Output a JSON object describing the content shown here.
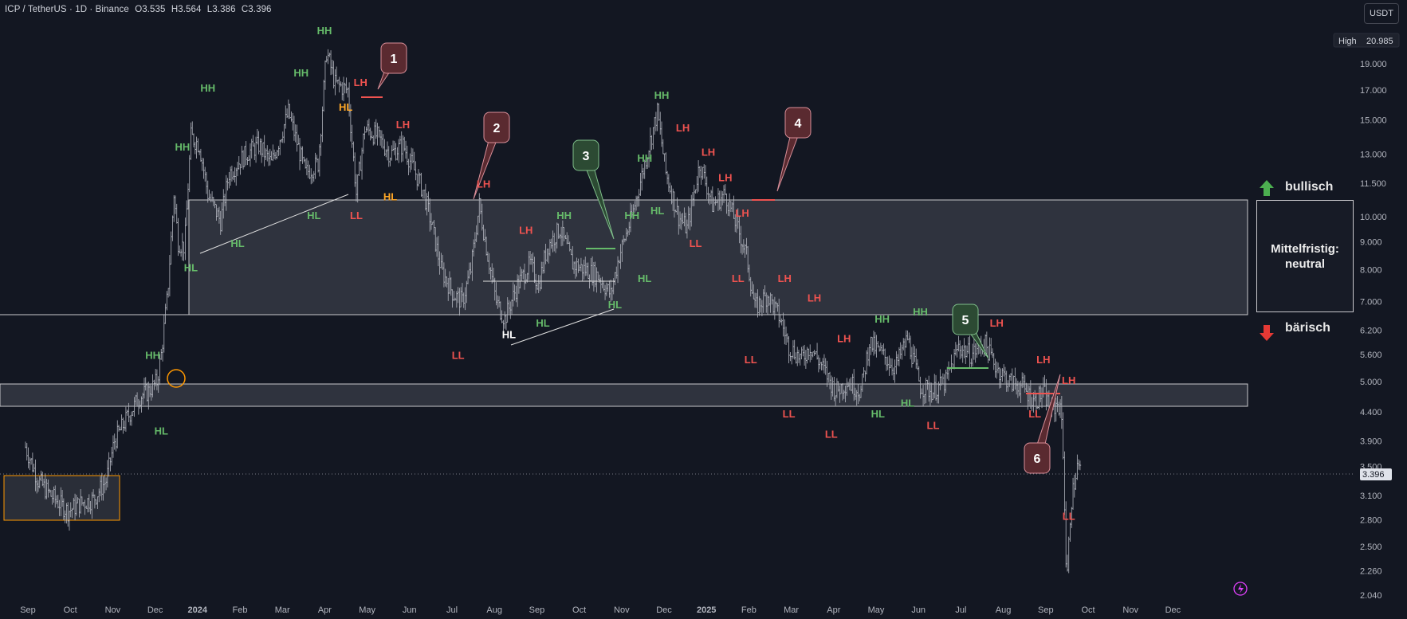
{
  "header": {
    "symbol": "ICP / TetherUS · 1D · Binance",
    "open": "O3.535",
    "high": "H3.564",
    "low": "L3.386",
    "close": "C3.396"
  },
  "currency_button": "USDT",
  "high_badge": {
    "label": "High",
    "value": "20.985"
  },
  "price_badge": "3.396",
  "zones": {
    "bullish_label": "bullisch",
    "bearish_label": "bärisch",
    "neutral_label_line1": "Mittelfristig:",
    "neutral_label_line2": "neutral"
  },
  "colors": {
    "background": "#131722",
    "candle": "#b2b5be",
    "green_label": "#66bb6a",
    "red_label": "#ef5350",
    "orange_label": "#ffa726",
    "white_label": "#ffffff",
    "callout_red": "#5a2a30",
    "callout_green": "#2c4a33",
    "zone_fill": "#3a3e48"
  },
  "chart_data": {
    "type": "candlestick",
    "yscale": "log",
    "ylim": [
      2.0,
      21.0
    ],
    "y_ticks": [
      "19.000",
      "17.000",
      "15.000",
      "13.000",
      "11.500",
      "10.000",
      "9.000",
      "8.000",
      "7.000",
      "6.200",
      "5.600",
      "5.000",
      "4.400",
      "3.900",
      "3.500",
      "3.100",
      "2.800",
      "2.500",
      "2.260",
      "2.040"
    ],
    "y_tick_values": [
      19.0,
      17.0,
      15.0,
      13.0,
      11.5,
      10.0,
      9.0,
      8.0,
      7.0,
      6.2,
      5.6,
      5.0,
      4.4,
      3.9,
      3.5,
      3.1,
      2.8,
      2.5,
      2.26,
      2.04
    ],
    "x_ticks": [
      "Sep",
      "Oct",
      "Nov",
      "Dec",
      "2024",
      "Feb",
      "Mar",
      "Apr",
      "May",
      "Jun",
      "Jul",
      "Aug",
      "Sep",
      "Oct",
      "Nov",
      "Dec",
      "2025",
      "Feb",
      "Mar",
      "Apr",
      "May",
      "Jun",
      "Jul",
      "Aug",
      "Sep",
      "Oct",
      "Nov",
      "Dec"
    ],
    "x_tick_index": [
      0,
      1,
      2,
      3,
      4,
      5,
      6,
      7,
      8,
      9,
      10,
      11,
      12,
      13,
      14,
      15,
      16,
      17,
      18,
      19,
      20,
      21,
      22,
      23,
      24,
      25,
      26,
      27
    ],
    "x_tick_start": "2023-09",
    "price_path": [
      [
        0,
        3.8
      ],
      [
        0.3,
        3.3
      ],
      [
        0.6,
        3.1
      ],
      [
        1.0,
        2.9
      ],
      [
        1.3,
        3.0
      ],
      [
        1.6,
        3.05
      ],
      [
        1.9,
        3.3
      ],
      [
        2.1,
        3.9
      ],
      [
        2.4,
        4.3
      ],
      [
        2.7,
        4.7
      ],
      [
        2.9,
        4.8
      ],
      [
        3.1,
        5.0
      ],
      [
        3.2,
        5.6
      ],
      [
        3.35,
        7.2
      ],
      [
        3.5,
        11.0
      ],
      [
        3.6,
        9.0
      ],
      [
        3.75,
        8.8
      ],
      [
        3.9,
        14.0
      ],
      [
        4.1,
        13.5
      ],
      [
        4.3,
        11.0
      ],
      [
        4.6,
        9.8
      ],
      [
        4.8,
        12.0
      ],
      [
        5.2,
        13.0
      ],
      [
        5.5,
        13.5
      ],
      [
        5.8,
        12.5
      ],
      [
        6.2,
        15.5
      ],
      [
        6.6,
        12.0
      ],
      [
        6.9,
        12.5
      ],
      [
        7.1,
        20.0
      ],
      [
        7.3,
        17.5
      ],
      [
        7.6,
        17.0
      ],
      [
        7.8,
        11.0
      ],
      [
        8.0,
        14.5
      ],
      [
        8.3,
        14.0
      ],
      [
        8.6,
        13.0
      ],
      [
        8.9,
        13.5
      ],
      [
        9.2,
        12.0
      ],
      [
        9.4,
        11.0
      ],
      [
        9.6,
        9.5
      ],
      [
        9.8,
        8.0
      ],
      [
        10.1,
        7.2
      ],
      [
        10.3,
        7.0
      ],
      [
        10.5,
        8.0
      ],
      [
        10.7,
        10.5
      ],
      [
        10.9,
        8.5
      ],
      [
        11.1,
        7.0
      ],
      [
        11.3,
        6.5
      ],
      [
        11.6,
        7.5
      ],
      [
        11.9,
        8.2
      ],
      [
        12.1,
        7.5
      ],
      [
        12.3,
        8.8
      ],
      [
        12.6,
        9.5
      ],
      [
        12.9,
        8.2
      ],
      [
        13.2,
        8.0
      ],
      [
        13.5,
        7.8
      ],
      [
        13.8,
        7.2
      ],
      [
        14.0,
        8.5
      ],
      [
        14.3,
        10.0
      ],
      [
        14.6,
        12.5
      ],
      [
        14.9,
        15.5
      ],
      [
        15.1,
        12.0
      ],
      [
        15.4,
        10.0
      ],
      [
        15.6,
        9.5
      ],
      [
        15.9,
        12.5
      ],
      [
        16.2,
        10.5
      ],
      [
        16.5,
        11.0
      ],
      [
        16.8,
        9.5
      ],
      [
        17.0,
        8.5
      ],
      [
        17.2,
        6.8
      ],
      [
        17.5,
        7.2
      ],
      [
        17.8,
        6.5
      ],
      [
        18.0,
        5.8
      ],
      [
        18.3,
        5.5
      ],
      [
        18.5,
        5.8
      ],
      [
        18.8,
        5.3
      ],
      [
        19.1,
        4.8
      ],
      [
        19.4,
        5.0
      ],
      [
        19.7,
        4.8
      ],
      [
        19.9,
        5.9
      ],
      [
        20.2,
        5.6
      ],
      [
        20.5,
        5.3
      ],
      [
        20.8,
        6.0
      ],
      [
        21.1,
        4.9
      ],
      [
        21.4,
        4.8
      ],
      [
        21.7,
        5.0
      ],
      [
        22.0,
        5.8
      ],
      [
        22.3,
        5.6
      ],
      [
        22.6,
        5.9
      ],
      [
        22.9,
        5.3
      ],
      [
        23.2,
        5.0
      ],
      [
        23.5,
        4.9
      ],
      [
        23.8,
        4.6
      ],
      [
        24.0,
        4.8
      ],
      [
        24.2,
        4.4
      ],
      [
        24.35,
        4.6
      ],
      [
        24.45,
        4.2
      ],
      [
        24.55,
        2.1
      ],
      [
        24.65,
        3.0
      ],
      [
        24.8,
        3.5
      ],
      [
        24.9,
        3.4
      ]
    ],
    "series": []
  },
  "callouts": [
    {
      "text": "1",
      "color": "red"
    },
    {
      "text": "2",
      "color": "red"
    },
    {
      "text": "3",
      "color": "green"
    },
    {
      "text": "4",
      "color": "red"
    },
    {
      "text": "5",
      "color": "green"
    },
    {
      "text": "6",
      "color": "red"
    }
  ],
  "swing_labels": [
    {
      "text": "HH",
      "color": "green",
      "x": 7.05,
      "y": 21.5
    },
    {
      "text": "HL",
      "color": "orange",
      "x": 7.55,
      "y": 15.6
    },
    {
      "text": "LH",
      "color": "red",
      "x": 7.9,
      "y": 17.3
    },
    {
      "text": "LL",
      "color": "red",
      "x": 7.8,
      "y": 9.9
    },
    {
      "text": "HH",
      "color": "green",
      "x": 4.3,
      "y": 16.9
    },
    {
      "text": "HH",
      "color": "green",
      "x": 3.7,
      "y": 13.2
    },
    {
      "text": "HL",
      "color": "green",
      "x": 3.9,
      "y": 7.95
    },
    {
      "text": "HL",
      "color": "green",
      "x": 5.0,
      "y": 8.8
    },
    {
      "text": "HH",
      "color": "green",
      "x": 6.5,
      "y": 18.0
    },
    {
      "text": "HL",
      "color": "green",
      "x": 6.8,
      "y": 9.9
    },
    {
      "text": "LH",
      "color": "red",
      "x": 8.9,
      "y": 14.5
    },
    {
      "text": "HL",
      "color": "orange",
      "x": 8.6,
      "y": 10.7
    },
    {
      "text": "LH",
      "color": "red",
      "x": 10.8,
      "y": 11.3
    },
    {
      "text": "LL",
      "color": "red",
      "x": 10.2,
      "y": 5.5
    },
    {
      "text": "HL",
      "color": "white",
      "x": 11.4,
      "y": 6.0
    },
    {
      "text": "LH",
      "color": "red",
      "x": 11.8,
      "y": 9.3
    },
    {
      "text": "HL",
      "color": "green",
      "x": 12.2,
      "y": 6.3
    },
    {
      "text": "HH",
      "color": "green",
      "x": 12.7,
      "y": 9.9
    },
    {
      "text": "HH",
      "color": "green",
      "x": 14.3,
      "y": 9.9
    },
    {
      "text": "HL",
      "color": "green",
      "x": 14.6,
      "y": 7.6
    },
    {
      "text": "HL",
      "color": "green",
      "x": 13.9,
      "y": 6.8
    },
    {
      "text": "HH",
      "color": "green",
      "x": 14.6,
      "y": 12.6
    },
    {
      "text": "HH",
      "color": "green",
      "x": 15.0,
      "y": 16.4
    },
    {
      "text": "HL",
      "color": "green",
      "x": 14.9,
      "y": 10.1
    },
    {
      "text": "LH",
      "color": "red",
      "x": 15.5,
      "y": 14.3
    },
    {
      "text": "LL",
      "color": "red",
      "x": 15.8,
      "y": 8.8
    },
    {
      "text": "LH",
      "color": "red",
      "x": 16.1,
      "y": 12.9
    },
    {
      "text": "LH",
      "color": "red",
      "x": 16.5,
      "y": 11.6
    },
    {
      "text": "LH",
      "color": "red",
      "x": 16.9,
      "y": 10.0
    },
    {
      "text": "LL",
      "color": "red",
      "x": 16.8,
      "y": 7.6
    },
    {
      "text": "LH",
      "color": "red",
      "x": 17.9,
      "y": 7.6
    },
    {
      "text": "LL",
      "color": "red",
      "x": 17.1,
      "y": 5.4
    },
    {
      "text": "LH",
      "color": "red",
      "x": 18.6,
      "y": 7.0
    },
    {
      "text": "LL",
      "color": "red",
      "x": 18.0,
      "y": 4.3
    },
    {
      "text": "LH",
      "color": "red",
      "x": 19.3,
      "y": 5.9
    },
    {
      "text": "LL",
      "color": "red",
      "x": 19.0,
      "y": 3.95
    },
    {
      "text": "HH",
      "color": "green",
      "x": 20.2,
      "y": 6.4
    },
    {
      "text": "HL",
      "color": "green",
      "x": 20.1,
      "y": 4.3
    },
    {
      "text": "HH",
      "color": "green",
      "x": 21.1,
      "y": 6.6
    },
    {
      "text": "HL",
      "color": "green",
      "x": 20.8,
      "y": 4.5
    },
    {
      "text": "LL",
      "color": "red",
      "x": 21.4,
      "y": 4.1
    },
    {
      "text": "LH",
      "color": "red",
      "x": 22.9,
      "y": 6.3
    },
    {
      "text": "LH",
      "color": "red",
      "x": 24.0,
      "y": 5.4
    },
    {
      "text": "LL",
      "color": "red",
      "x": 23.8,
      "y": 4.3
    },
    {
      "text": "LH",
      "color": "red",
      "x": 24.6,
      "y": 4.95
    },
    {
      "text": "LL",
      "color": "red",
      "x": 24.6,
      "y": 2.8
    },
    {
      "text": "HH",
      "color": "green",
      "x": 3.0,
      "y": 5.5
    },
    {
      "text": "HL",
      "color": "green",
      "x": 3.2,
      "y": 4.0
    }
  ]
}
